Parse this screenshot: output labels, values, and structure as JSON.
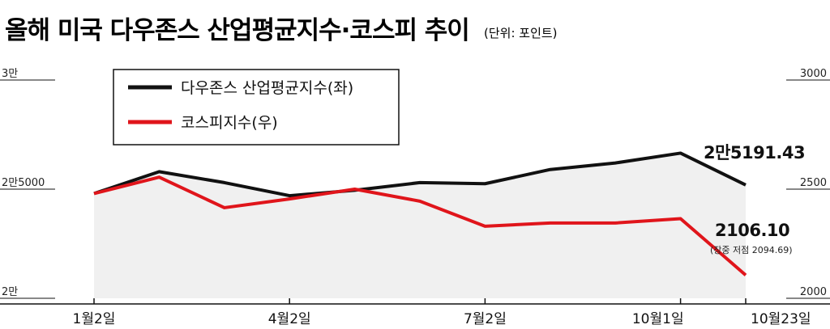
{
  "chart_data": {
    "type": "line",
    "title": "올해 미국 다우존스 산업평균지수·코스피 추이",
    "unit_label": "(단위: 포인트)",
    "categories": [
      "1월2일",
      "",
      "",
      "4월2일",
      "",
      "",
      "7월2일",
      "",
      "",
      "10월1일",
      "10월23일"
    ],
    "x_tick_labels": [
      "1월2일",
      "4월2일",
      "7월2일",
      "10월1일",
      "10월23일"
    ],
    "y_left": {
      "range": [
        20000,
        30000
      ],
      "tick_labels": [
        "3만",
        "2만5000",
        "2만"
      ],
      "tick_values": [
        30000,
        25000,
        20000
      ]
    },
    "y_right": {
      "range": [
        2000,
        3000
      ],
      "tick_labels": [
        "3000",
        "2500",
        "2000"
      ],
      "tick_values": [
        3000,
        2500,
        2000
      ]
    },
    "series": [
      {
        "name": "다우존스 산업평균지수(좌)",
        "axis": "left",
        "color": "#111111",
        "values": [
          24800,
          25800,
          25300,
          24700,
          24950,
          25300,
          25250,
          25900,
          26200,
          26650,
          25191.43
        ]
      },
      {
        "name": "코스피지수(우)",
        "axis": "right",
        "color": "#e0151b",
        "values": [
          2480,
          2555,
          2415,
          2455,
          2500,
          2445,
          2330,
          2345,
          2345,
          2365,
          2106.1
        ]
      }
    ],
    "annotations": {
      "dow_last": "2만5191.43",
      "kospi_last": "2106.10",
      "kospi_note": "(장중 저점 2094.69)"
    },
    "area_fill_color": "#f0f0f0",
    "legend_placement": "top-left",
    "grid": false
  }
}
